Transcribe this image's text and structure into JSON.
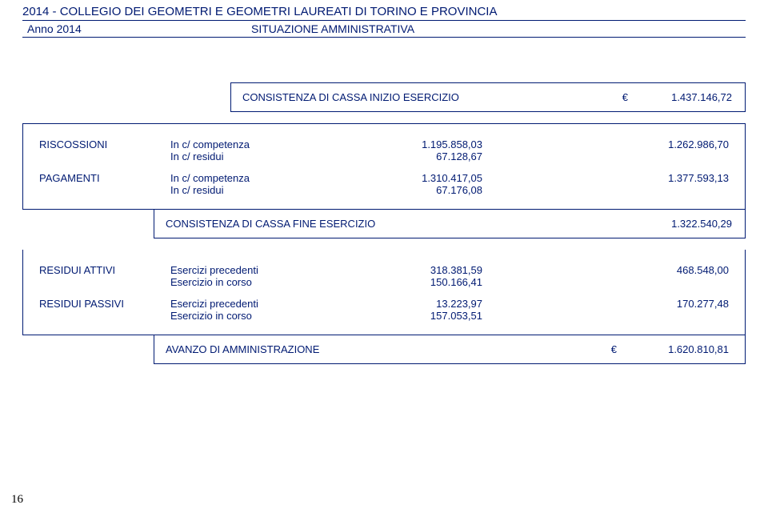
{
  "colors": {
    "text": "#001a72",
    "border": "#001a72",
    "background": "#ffffff",
    "pagenum": "#000000"
  },
  "fonts": {
    "main_family": "Arial",
    "main_size_pt": 10,
    "header_title_size_pt": 11,
    "pagenum_family": "Times New Roman",
    "pagenum_size_pt": 11
  },
  "header": {
    "title": "2014 - COLLEGIO DEI GEOMETRI E GEOMETRI LAUREATI DI TORINO E PROVINCIA",
    "anno": "Anno 2014",
    "subtitle": "SITUAZIONE AMMINISTRATIVA"
  },
  "cassa_inizio": {
    "label": "CONSISTENZA DI CASSA INIZIO ESERCIZIO",
    "currency": "€",
    "value": "1.437.146,72"
  },
  "riscossioni": {
    "label": "RISCOSSIONI",
    "rows": [
      {
        "desc": "In c/ competenza",
        "value": "1.195.858,03"
      },
      {
        "desc": "In c/ residui",
        "value": "67.128,67"
      }
    ],
    "total": "1.262.986,70"
  },
  "pagamenti": {
    "label": "PAGAMENTI",
    "rows": [
      {
        "desc": "In c/ competenza",
        "value": "1.310.417,05"
      },
      {
        "desc": "In c/ residui",
        "value": "67.176,08"
      }
    ],
    "total": "1.377.593,13"
  },
  "cassa_fine": {
    "label": "CONSISTENZA DI CASSA FINE ESERCIZIO",
    "value": "1.322.540,29"
  },
  "residui_attivi": {
    "label": "RESIDUI ATTIVI",
    "rows": [
      {
        "desc": "Esercizi precedenti",
        "value": "318.381,59"
      },
      {
        "desc": "Esercizio in corso",
        "value": "150.166,41"
      }
    ],
    "total": "468.548,00"
  },
  "residui_passivi": {
    "label": "RESIDUI PASSIVI",
    "rows": [
      {
        "desc": "Esercizi precedenti",
        "value": "13.223,97"
      },
      {
        "desc": "Esercizio in corso",
        "value": "157.053,51"
      }
    ],
    "total": "170.277,48"
  },
  "avanzo": {
    "label": "AVANZO DI AMMINISTRAZIONE",
    "currency": "€",
    "value": "1.620.810,81"
  },
  "page_number": "16"
}
